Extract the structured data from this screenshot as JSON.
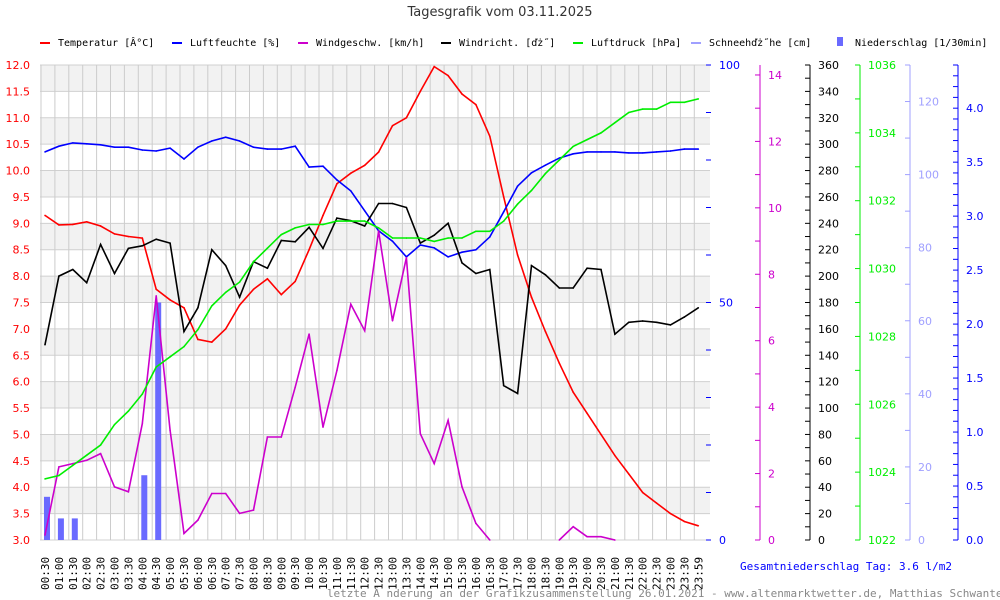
{
  "chart_data": {
    "type": "line",
    "title": "Tagesgrafik vom 03.11.2025",
    "x": [
      "00:30",
      "01:00",
      "01:30",
      "02:00",
      "02:30",
      "03:00",
      "03:30",
      "04:00",
      "04:30",
      "05:00",
      "05:30",
      "06:00",
      "06:30",
      "07:00",
      "07:30",
      "08:00",
      "08:30",
      "09:00",
      "09:30",
      "10:00",
      "10:30",
      "11:00",
      "11:30",
      "12:00",
      "12:30",
      "13:00",
      "13:30",
      "14:00",
      "14:30",
      "15:00",
      "15:30",
      "16:00",
      "16:30",
      "17:00",
      "17:30",
      "18:00",
      "18:30",
      "19:00",
      "19:30",
      "20:00",
      "20:30",
      "21:00",
      "21:30",
      "22:00",
      "22:30",
      "23:00",
      "23:30",
      "23:59"
    ],
    "legend": [
      {
        "label": "Temperatur [Â°C]",
        "color": "#ff0000"
      },
      {
        "label": "Luftfeuchte [%]",
        "color": "#0000ff"
      },
      {
        "label": "Windgeschw. [km/h]",
        "color": "#cc00cc"
      },
      {
        "label": "Windricht. [ďż˝]",
        "color": "#000000"
      },
      {
        "label": "Luftdruck [hPa]",
        "color": "#00ee00"
      },
      {
        "label": "Schneehďż˝he [cm]",
        "color": "#a0a0ff"
      },
      {
        "label": "Niederschlag [1/30min]",
        "color": "#6a6aff"
      }
    ],
    "axes": {
      "temp": {
        "min": 3.0,
        "max": 12.0,
        "labels": [
          "3.0",
          "3.5",
          "4.0",
          "4.5",
          "5.0",
          "5.5",
          "6.0",
          "6.5",
          "7.0",
          "7.5",
          "8.0",
          "8.5",
          "9.0",
          "9.5",
          "10.0",
          "10.5",
          "11.0",
          "11.5",
          "12.0"
        ],
        "color": "#ff0000"
      },
      "humidity": {
        "min": 0,
        "max": 100,
        "labels": [
          "0",
          "50",
          "100"
        ],
        "color": "#0000ff"
      },
      "wind_speed": {
        "min": 0,
        "max": 14.3,
        "labels": [
          "0",
          "2",
          "4",
          "6",
          "8",
          "10",
          "12",
          "14"
        ],
        "color": "#cc00cc"
      },
      "wind_dir": {
        "min": 0,
        "max": 360,
        "labels": [
          "0",
          "20",
          "40",
          "60",
          "80",
          "100",
          "120",
          "140",
          "160",
          "180",
          "200",
          "220",
          "240",
          "260",
          "280",
          "300",
          "320",
          "340",
          "360"
        ],
        "color": "#000000"
      },
      "pressure": {
        "min": 1022,
        "max": 1036,
        "labels": [
          "1022",
          "1024",
          "1026",
          "1028",
          "1030",
          "1032",
          "1034",
          "1036"
        ],
        "color": "#00ee00"
      },
      "snow": {
        "min": 0,
        "max": 130,
        "labels": [
          "0",
          "20",
          "40",
          "60",
          "80",
          "100",
          "120"
        ],
        "color": "#a0a0ff"
      },
      "precip": {
        "min": 0,
        "max": 4.4,
        "labels": [
          "0.0",
          "0.5",
          "1.0",
          "1.5",
          "2.0",
          "2.5",
          "3.0",
          "3.5",
          "4.0"
        ],
        "color": "#0000ff"
      }
    },
    "series": [
      {
        "name": "Temperatur",
        "axis": "temp",
        "color": "#ff0000",
        "values": [
          9.15,
          8.97,
          8.98,
          9.03,
          8.95,
          8.8,
          8.75,
          8.72,
          7.75,
          7.55,
          7.4,
          6.8,
          6.75,
          7.0,
          7.45,
          7.75,
          7.95,
          7.65,
          7.9,
          8.5,
          9.15,
          9.75,
          9.95,
          10.1,
          10.35,
          10.85,
          11.0,
          11.5,
          11.97,
          11.8,
          11.45,
          11.25,
          10.65,
          9.5,
          8.4,
          7.6,
          6.95,
          6.35,
          5.8,
          5.4,
          5.0,
          4.6,
          4.25,
          3.9,
          3.7,
          3.5,
          3.35,
          3.27
        ]
      },
      {
        "name": "Luftfeuchte",
        "axis": "humidity",
        "color": "#0000ff",
        "values": [
          81.7,
          82.9,
          83.6,
          83.4,
          83.2,
          82.7,
          82.7,
          82.1,
          81.9,
          82.5,
          80.2,
          82.7,
          84.0,
          84.8,
          84.0,
          82.7,
          82.3,
          82.3,
          82.9,
          78.5,
          78.7,
          75.8,
          73.5,
          69.3,
          65.1,
          62.9,
          59.6,
          62.1,
          61.5,
          59.6,
          60.6,
          61.1,
          63.8,
          69.1,
          74.5,
          77.3,
          78.9,
          80.4,
          81.3,
          81.7,
          81.7,
          81.7,
          81.5,
          81.5,
          81.7,
          81.9,
          82.3,
          82.3
        ]
      },
      {
        "name": "Windgeschw.",
        "axis": "wind_speed",
        "color": "#cc00cc",
        "values": [
          0.15,
          2.2,
          2.3,
          2.4,
          2.6,
          1.6,
          1.45,
          3.5,
          7.35,
          3.3,
          0.2,
          0.6,
          1.4,
          1.4,
          0.8,
          0.9,
          3.1,
          3.1,
          4.6,
          6.2,
          3.4,
          5.1,
          7.1,
          6.3,
          9.3,
          6.6,
          8.5,
          3.2,
          2.3,
          3.6,
          1.6,
          0.5,
          0,
          null,
          null,
          null,
          null,
          0,
          0.4,
          0.1,
          0.1,
          0,
          null,
          null,
          null,
          null,
          null,
          null
        ]
      },
      {
        "name": "Windricht.",
        "axis": "wind_dir",
        "color": "#000000",
        "values": [
          148,
          200,
          205,
          195,
          224,
          202,
          221,
          223,
          228,
          225,
          158,
          176,
          220,
          208,
          184,
          211,
          206,
          227,
          226,
          237,
          221,
          244,
          242,
          238,
          255,
          255,
          252,
          225,
          231,
          240,
          210,
          202,
          205,
          117,
          111,
          208,
          201,
          191,
          191,
          206,
          205,
          156,
          165,
          166,
          165,
          163,
          169,
          176
        ]
      },
      {
        "name": "Luftdruck",
        "axis": "pressure",
        "color": "#00ee00",
        "values": [
          1023.8,
          1023.9,
          1024.2,
          1024.5,
          1024.8,
          1025.4,
          1025.8,
          1026.3,
          1027.1,
          1027.4,
          1027.7,
          1028.2,
          1028.9,
          1029.3,
          1029.6,
          1030.2,
          1030.6,
          1031.0,
          1031.2,
          1031.3,
          1031.3,
          1031.4,
          1031.4,
          1031.4,
          1031.2,
          1030.9,
          1030.9,
          1030.9,
          1030.8,
          1030.9,
          1030.9,
          1031.1,
          1031.1,
          1031.4,
          1031.9,
          1032.3,
          1032.8,
          1033.2,
          1033.6,
          1033.8,
          1034.0,
          1034.3,
          1034.6,
          1034.7,
          1034.7,
          1034.9,
          1034.9,
          1035.0
        ]
      }
    ],
    "bars": {
      "name": "Niederschlag",
      "axis": "precip",
      "color": "#6a6aff",
      "values": [
        0.4,
        0.2,
        0.2,
        0,
        0,
        0,
        0,
        0.6,
        2.2,
        0,
        0,
        0,
        0,
        0,
        0,
        0,
        0,
        0,
        0,
        0,
        0,
        0,
        0,
        0,
        0,
        0,
        0,
        0,
        0,
        0,
        0,
        0,
        0,
        0,
        0,
        0,
        0,
        0,
        0,
        0,
        0,
        0,
        0,
        0,
        0,
        0,
        0,
        0
      ]
    },
    "total_precip": "Gesamtniederschlag Tag: 3.6 l/m2",
    "footer": "letzte Ă nderung an der Grafikzusammenstellung 26.01.2021 - www.altenmarktwetter.de, Matthias Schwanter"
  }
}
